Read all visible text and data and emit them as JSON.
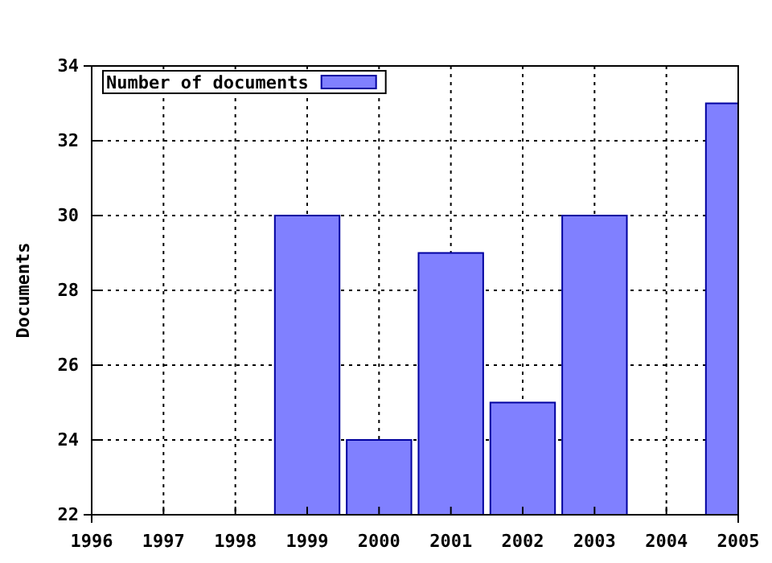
{
  "chart_data": {
    "type": "bar",
    "ylabel": "Documents",
    "x": [
      1999,
      2000,
      2001,
      2002,
      2003,
      2005
    ],
    "series": [
      {
        "name": "Number of documents",
        "color": "#8080ff",
        "values": [
          30,
          24,
          29,
          25,
          30,
          33
        ]
      }
    ],
    "xlim": [
      1996,
      2005
    ],
    "xticks": [
      1996,
      1997,
      1998,
      1999,
      2000,
      2001,
      2002,
      2003,
      2004,
      2005
    ],
    "ylim": [
      22,
      34
    ],
    "yticks": [
      22,
      24,
      26,
      28,
      30,
      32,
      34
    ],
    "grid": true,
    "legend": "top left"
  }
}
